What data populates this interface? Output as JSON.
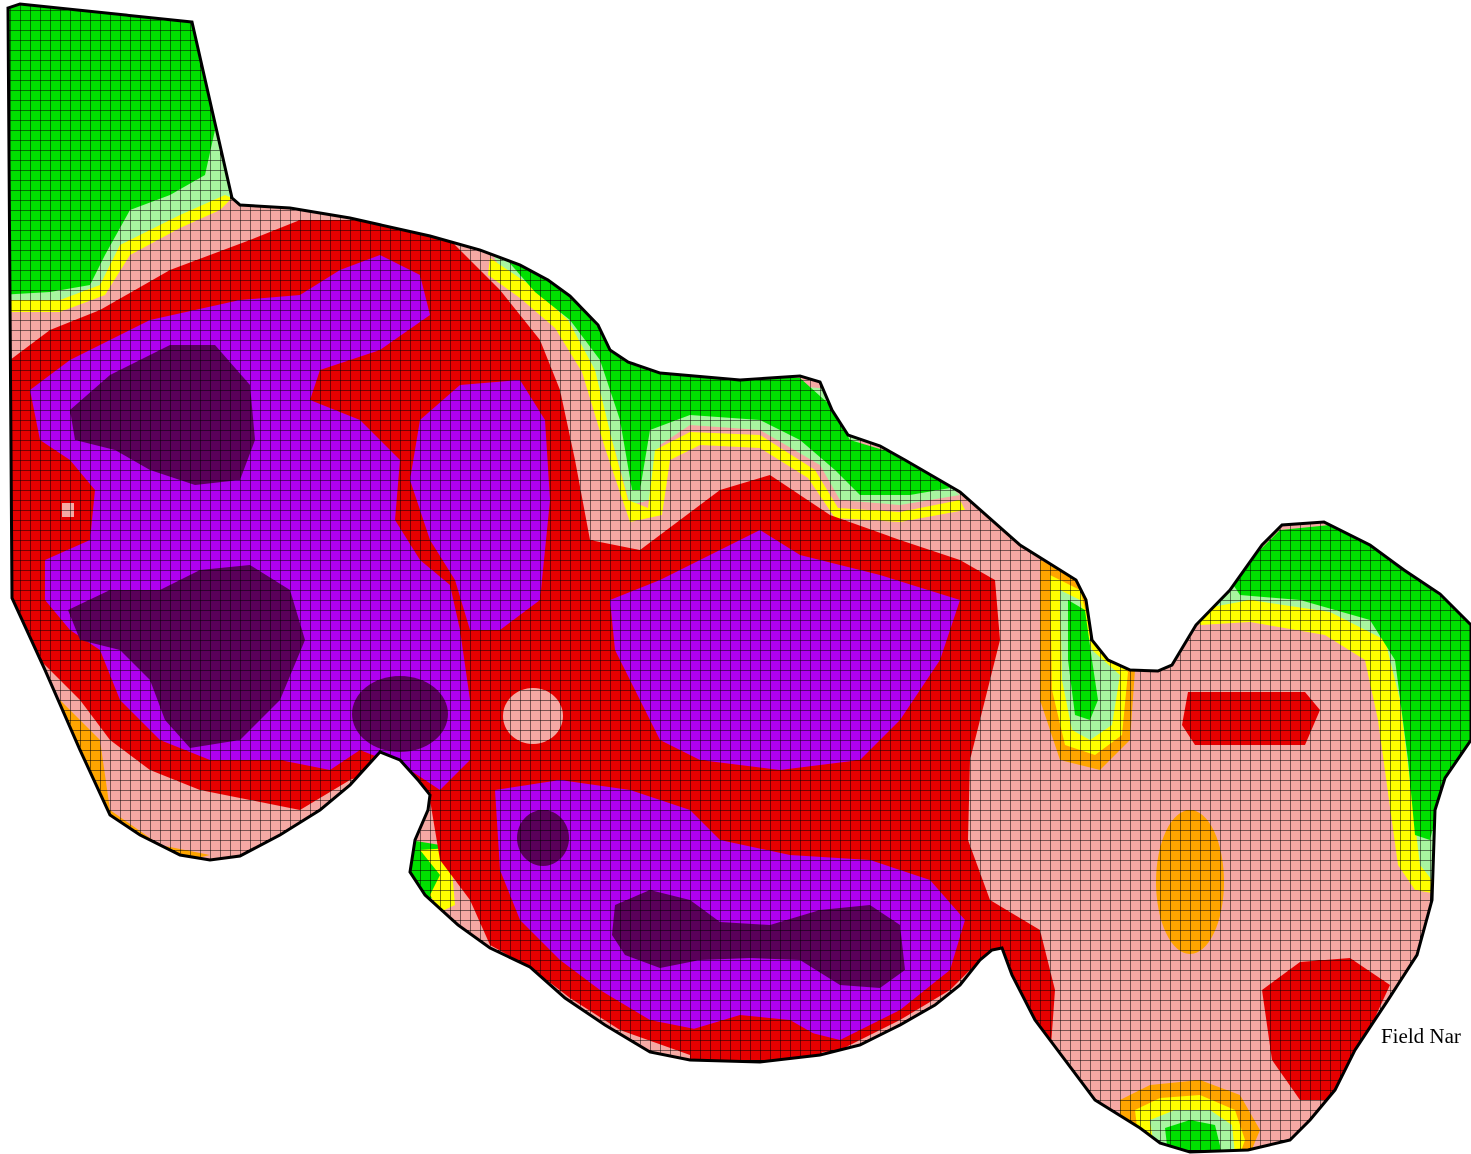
{
  "map": {
    "field_label": "Field Nar",
    "colors": {
      "green": "#00e000",
      "light_green": "#a8f5a0",
      "yellow": "#ffff00",
      "orange": "#ffa500",
      "pink": "#f5a9a4",
      "red": "#e60000",
      "purple": "#b000f0",
      "dark_purple": "#5a005a",
      "grid_line": "#000000",
      "outline": "#000000"
    },
    "zone_names": [
      "green-zone",
      "light-green-zone",
      "yellow-zone",
      "orange-zone",
      "pink-zone",
      "red-zone",
      "purple-zone",
      "dark-purple-zone"
    ]
  }
}
